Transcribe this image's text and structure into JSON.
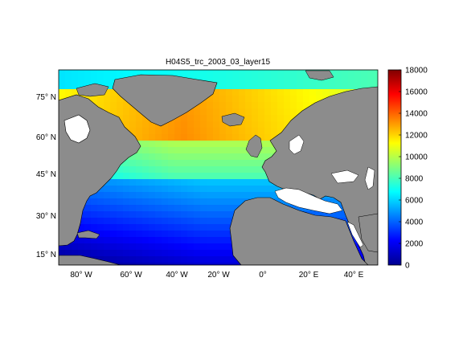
{
  "title": "H04S5_trc_2003_03_layer15",
  "map": {
    "lat_ticks": [
      "15° N",
      "30° N",
      "45° N",
      "60° N",
      "75° N"
    ],
    "lon_ticks": [
      "80° W",
      "60° W",
      "40° W",
      "20° W",
      "0°",
      "20° E",
      "40° E"
    ]
  },
  "colorbar": {
    "min": 0,
    "max": 18000,
    "ticks": [
      "0",
      "2000",
      "4000",
      "6000",
      "8000",
      "10000",
      "12000",
      "14000",
      "16000",
      "18000"
    ],
    "colormap": "jet"
  },
  "colors": {
    "land": "#8c8c8c",
    "no_data": "#ffffff",
    "coast": "#000000"
  }
}
